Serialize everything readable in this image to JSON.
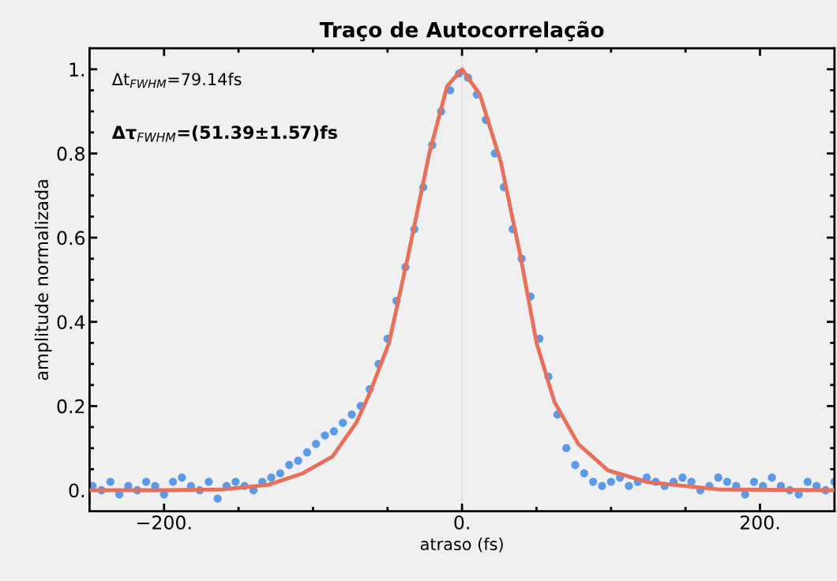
{
  "chart_data": {
    "type": "scatter",
    "title": "Traço de Autocorrelação",
    "xlabel": "atraso (fs)",
    "ylabel": "amplitude normalizada",
    "xlim": [
      -250,
      250
    ],
    "ylim": [
      -0.05,
      1.05
    ],
    "xticks": [
      {
        "value": -200,
        "label": "−200."
      },
      {
        "value": -150,
        "label": null
      },
      {
        "value": -100,
        "label": null
      },
      {
        "value": -50,
        "label": null
      },
      {
        "value": 0,
        "label": "0."
      },
      {
        "value": 50,
        "label": null
      },
      {
        "value": 100,
        "label": null
      },
      {
        "value": 150,
        "label": null
      },
      {
        "value": 200,
        "label": "200."
      }
    ],
    "yticks": [
      {
        "value": 0,
        "label": "0."
      },
      {
        "value": 0.05,
        "label": null
      },
      {
        "value": 0.1,
        "label": null
      },
      {
        "value": 0.15,
        "label": null
      },
      {
        "value": 0.2,
        "label": "0.2"
      },
      {
        "value": 0.25,
        "label": null
      },
      {
        "value": 0.3,
        "label": null
      },
      {
        "value": 0.35,
        "label": null
      },
      {
        "value": 0.4,
        "label": "0.4"
      },
      {
        "value": 0.45,
        "label": null
      },
      {
        "value": 0.5,
        "label": null
      },
      {
        "value": 0.55,
        "label": null
      },
      {
        "value": 0.6,
        "label": "0.6"
      },
      {
        "value": 0.65,
        "label": null
      },
      {
        "value": 0.7,
        "label": null
      },
      {
        "value": 0.75,
        "label": null
      },
      {
        "value": 0.8,
        "label": "0.8"
      },
      {
        "value": 0.85,
        "label": null
      },
      {
        "value": 0.9,
        "label": null
      },
      {
        "value": 0.95,
        "label": null
      },
      {
        "value": 1,
        "label": "1."
      }
    ],
    "marker": "circle",
    "grid": false,
    "ref_lines": [
      {
        "axis": "x",
        "value": 0,
        "label": null,
        "color": "#dcdcdc"
      }
    ],
    "annotations": [
      "Δt$_{FWHM}$=79.14fs",
      "Δτ$_{FWHM}$=(51.39±1.57)fs"
    ],
    "series": [
      {
        "color": "#5b9ae6",
        "x": [
          -248,
          -242,
          -236,
          -230,
          -224,
          -218,
          -212,
          -206,
          -200,
          -194,
          -188,
          -182,
          -176,
          -170,
          -164,
          -158,
          -152,
          -146,
          -140,
          -134,
          -128,
          -122,
          -116,
          -110,
          -104,
          -98,
          -92,
          -86,
          -80,
          -74,
          -68,
          -62,
          -56,
          -50,
          -44,
          -38,
          -32,
          -26,
          -20,
          -14,
          -8,
          -2,
          4,
          10,
          16,
          22,
          28,
          34,
          40,
          46,
          52,
          58,
          64,
          70,
          76,
          82,
          88,
          94,
          100,
          106,
          112,
          118,
          124,
          130,
          136,
          142,
          148,
          154,
          160,
          166,
          172,
          178,
          184,
          190,
          196,
          202,
          208,
          214,
          220,
          226,
          232,
          238,
          244,
          250
        ],
        "values": [
          0.01,
          0.0,
          0.02,
          -0.01,
          0.01,
          0.0,
          0.02,
          0.01,
          -0.01,
          0.02,
          0.03,
          0.01,
          0.0,
          0.02,
          -0.02,
          0.01,
          0.02,
          0.01,
          0.0,
          0.02,
          0.03,
          0.04,
          0.06,
          0.07,
          0.09,
          0.11,
          0.13,
          0.14,
          0.16,
          0.18,
          0.2,
          0.24,
          0.3,
          0.36,
          0.45,
          0.53,
          0.62,
          0.72,
          0.82,
          0.9,
          0.95,
          0.99,
          0.98,
          0.94,
          0.88,
          0.8,
          0.72,
          0.62,
          0.55,
          0.46,
          0.36,
          0.27,
          0.18,
          0.1,
          0.06,
          0.04,
          0.02,
          0.01,
          0.02,
          0.03,
          0.01,
          0.02,
          0.03,
          0.02,
          0.01,
          0.02,
          0.03,
          0.02,
          0.0,
          0.01,
          0.03,
          0.02,
          0.01,
          -0.01,
          0.02,
          0.01,
          0.03,
          0.01,
          0.0,
          -0.01,
          0.02,
          0.01,
          0.0,
          0.02
        ]
      },
      {
        "type": "line",
        "color": "#e8705a",
        "marker": "none",
        "x": [
          -250,
          -200,
          -160,
          -130,
          -107,
          -87,
          -71,
          -62,
          -49,
          -36,
          -22,
          -10,
          0,
          12,
          26,
          39,
          50,
          62,
          78,
          98,
          125,
          172,
          250
        ],
        "values": [
          0,
          0,
          0.002,
          0.013,
          0.04,
          0.08,
          0.16,
          0.23,
          0.35,
          0.56,
          0.8,
          0.96,
          1.0,
          0.94,
          0.78,
          0.56,
          0.35,
          0.21,
          0.11,
          0.047,
          0.019,
          0.002,
          0
        ]
      }
    ]
  }
}
